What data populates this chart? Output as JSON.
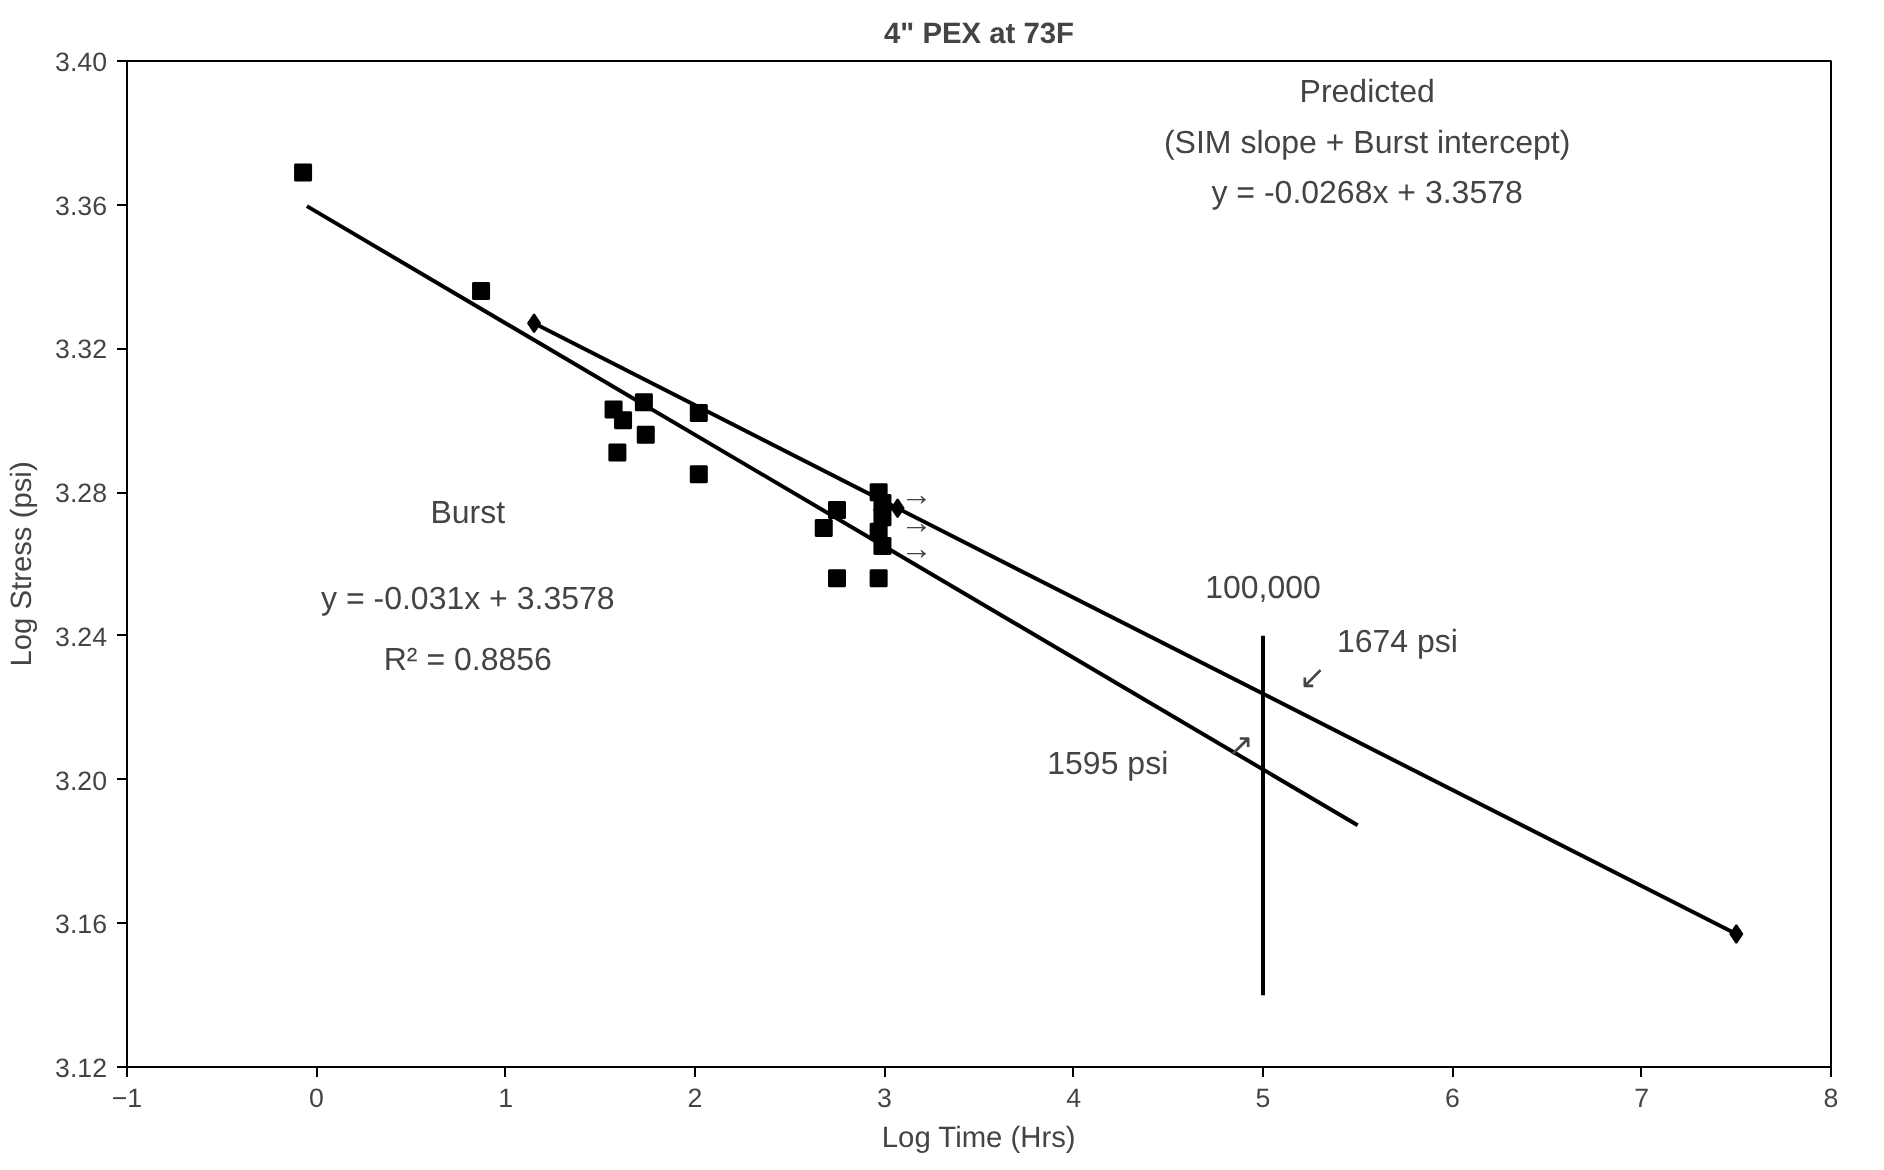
{
  "chart_data": {
    "type": "scatter",
    "title": "4\" PEX at 73F",
    "xlabel": "Log Time (Hrs)",
    "ylabel": "Log Stress (psi)",
    "xlim": [
      -1,
      8
    ],
    "xticks": [
      -1,
      0,
      1,
      2,
      3,
      4,
      5,
      6,
      7,
      8
    ],
    "ylim": [
      3.12,
      3.4
    ],
    "yticks": [
      3.12,
      3.16,
      {
        "value": 3.2,
        "label": "3.20"
      },
      3.24,
      3.28,
      3.32,
      3.36,
      {
        "value": 3.4,
        "label": "3.40"
      }
    ],
    "grid": false,
    "series": [
      {
        "color": "#000000",
        "marker": "square",
        "x": [
          -0.07,
          0.87,
          1.57,
          1.62,
          1.73,
          1.74,
          1.59,
          2.02,
          2.02,
          2.75,
          2.68,
          2.75,
          2.97,
          2.97,
          2.99,
          2.99,
          2.97,
          2.99
        ],
        "values": [
          3.369,
          3.336,
          3.303,
          3.3,
          3.305,
          3.296,
          3.291,
          3.302,
          3.285,
          3.275,
          3.27,
          3.256,
          3.256,
          3.28,
          3.277,
          3.273,
          3.269,
          3.265
        ]
      },
      {
        "type": "line",
        "color": "#000000",
        "marker": "none",
        "x": [
          -0.05,
          5.5
        ],
        "values": [
          3.3596,
          3.1873
        ]
      },
      {
        "type": "line",
        "color": "#000000",
        "marker": "diamond",
        "x": [
          1.15,
          3.07,
          7.5
        ],
        "values": [
          3.327,
          3.2755,
          3.157
        ]
      },
      {
        "type": "line",
        "color": "#000000",
        "marker": "none",
        "x": [
          5,
          5
        ],
        "values": [
          3.14,
          3.24
        ]
      }
    ],
    "annotations": [
      "Predicted",
      "(SIM slope + Burst intercept)",
      "y = -0.0268x + 3.3578",
      "Burst",
      "y = -0.031x + 3.3578",
      "R² = 0.8856",
      "100,000",
      "1674 psi",
      "1595 psi",
      "↙",
      "↗",
      "→",
      "→",
      "→"
    ]
  }
}
